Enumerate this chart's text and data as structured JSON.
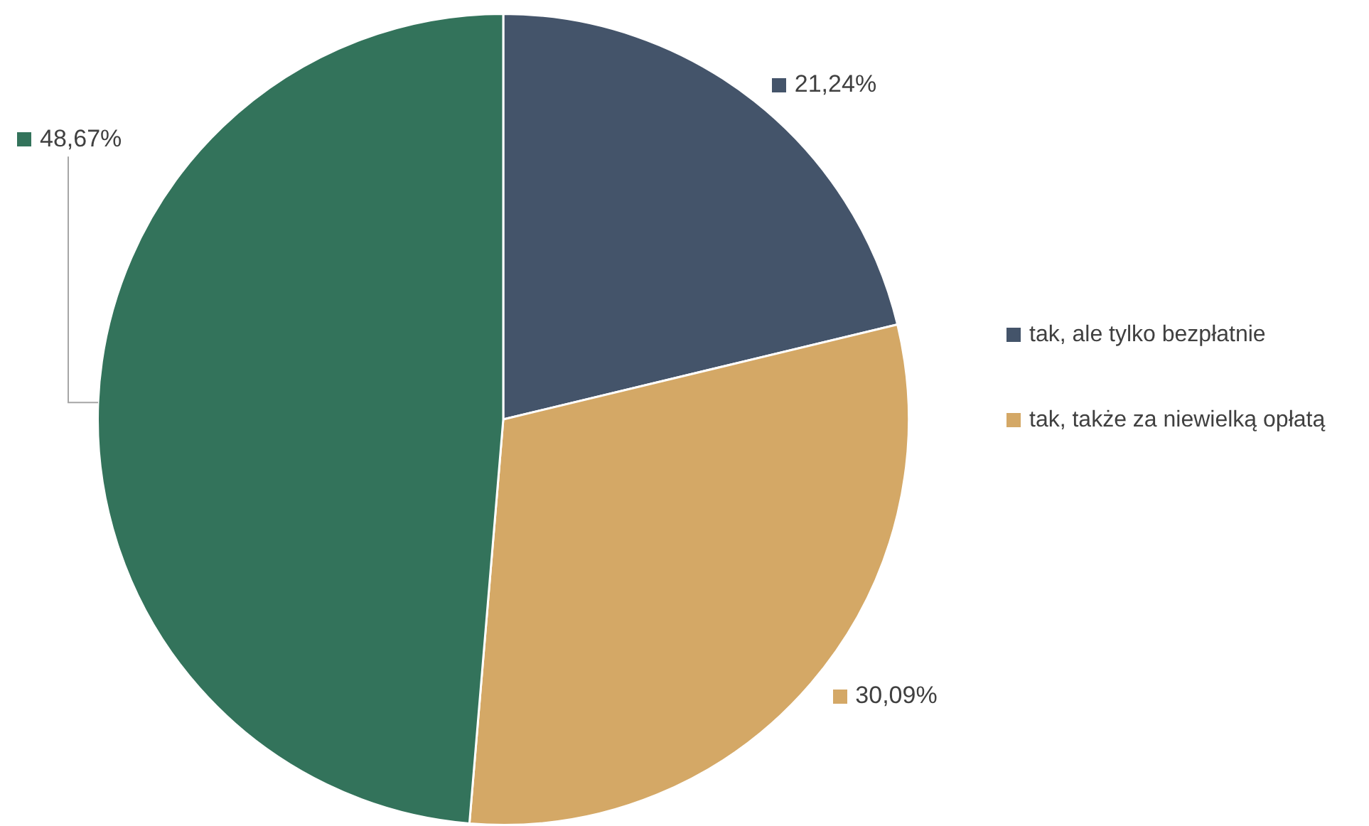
{
  "chart_data": {
    "type": "pie",
    "categories": [
      "tak, ale tylko bezpłatnie",
      "tak, także za niewielką opłatą",
      null
    ],
    "values": [
      21.24,
      30.09,
      48.67
    ],
    "colors": [
      "#44546a",
      "#d4a866",
      "#33735b"
    ],
    "value_labels": [
      "21,24%",
      "30,09%",
      "48,67%"
    ],
    "legend": "right"
  }
}
